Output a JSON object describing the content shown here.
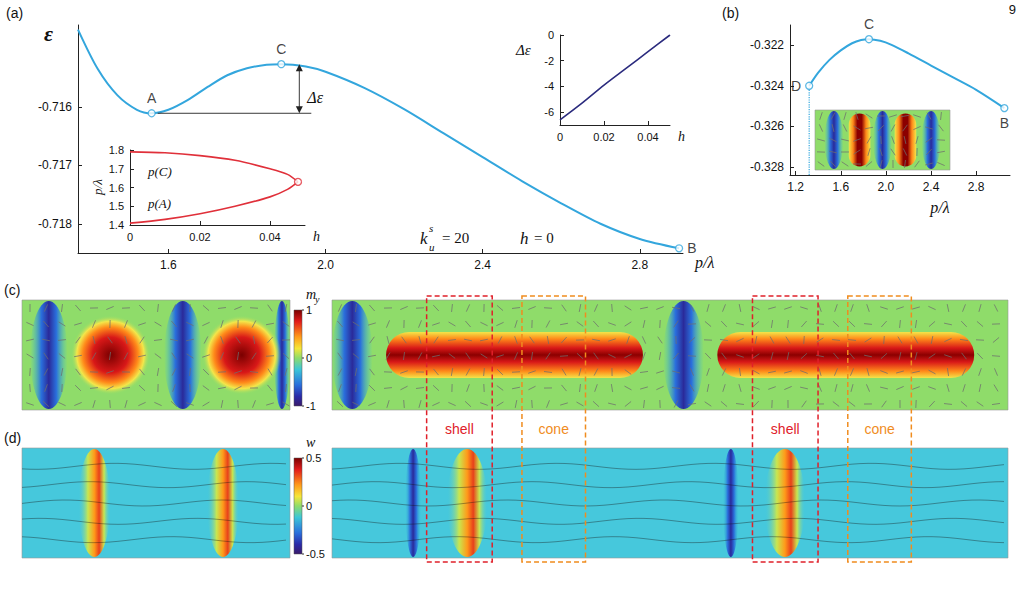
{
  "page_number": "9",
  "chart_data": [
    {
      "panel": "(a)",
      "type": "line",
      "x_label": "p/λ",
      "y_label": "ε",
      "color": "#33a6dd",
      "x": [
        1.37,
        1.42,
        1.47,
        1.52,
        1.5575,
        1.6,
        1.65,
        1.7,
        1.75,
        1.8,
        1.85,
        1.8875,
        1.95,
        2.0,
        2.1,
        2.2,
        2.3,
        2.4,
        2.5,
        2.6,
        2.7,
        2.8,
        2.9
      ],
      "values": [
        -0.71468,
        -0.71535,
        -0.7158,
        -0.71605,
        -0.71611,
        -0.71605,
        -0.71588,
        -0.71566,
        -0.71546,
        -0.71534,
        -0.71528,
        -0.71527,
        -0.71531,
        -0.7154,
        -0.71568,
        -0.71604,
        -0.71645,
        -0.71686,
        -0.71727,
        -0.71765,
        -0.718,
        -0.71826,
        -0.71842
      ],
      "xlim": [
        1.37,
        2.91
      ],
      "xticks": [
        1.6,
        {
          "value": 2,
          "label": "2.0"
        },
        2.4,
        2.8
      ],
      "ylim": [
        -0.7185,
        -0.7146
      ],
      "yticks": [
        -0.716,
        -0.717,
        -0.718
      ],
      "points": [
        {
          "label": "A",
          "x": 1.5575,
          "y": -0.71611
        },
        {
          "label": "C",
          "x": 1.8875,
          "y": -0.71527
        },
        {
          "label": "B",
          "x": 2.9,
          "y": -0.71842
        }
      ],
      "barrier_label": "Δε",
      "parameters": [
        {
          "symbol": "k",
          "subscript": "u",
          "superscript": "s",
          "text": "= 20"
        },
        {
          "symbol": "h",
          "text": "= 0"
        }
      ]
    },
    {
      "type": "line",
      "x_label": "h",
      "y_label": "p/λ",
      "x": [
        0,
        0.01,
        0.02,
        0.03,
        0.04,
        0.045,
        0.048
      ],
      "series": [
        {
          "name": "p(C)",
          "color": "#e0303a",
          "values": [
            1.79,
            1.785,
            1.77,
            1.745,
            1.7,
            1.67,
            1.63
          ]
        },
        {
          "name": "p(A)",
          "color": "#e0303a",
          "values": [
            1.41,
            1.43,
            1.46,
            1.5,
            1.55,
            1.59,
            1.63
          ]
        }
      ],
      "xlim": [
        0,
        0.05
      ],
      "xticks": [
        0,
        0.02,
        0.04
      ],
      "ylim": [
        1.4,
        1.8
      ],
      "yticks": [
        1.4,
        1.5,
        1.6,
        1.7,
        1.8
      ],
      "points": [
        {
          "x": 0.048,
          "y": 1.63
        }
      ]
    },
    {
      "type": "line",
      "x_label": "h",
      "y_label": "Δε",
      "color": "#2b2b7e",
      "x": [
        0,
        0.01,
        0.02,
        0.03,
        0.04,
        0.05
      ],
      "values": [
        -6.6,
        -5.3,
        -3.9,
        -2.6,
        -1.3,
        0
      ],
      "xlim": [
        0,
        0.05
      ],
      "xticks": [
        0,
        0.02,
        0.04
      ],
      "ylim": [
        -7,
        0
      ],
      "yticks": [
        0,
        -2,
        -4,
        -6
      ]
    },
    {
      "panel": "(b)",
      "type": "line",
      "x_label": "p/λ",
      "color": "#33a6dd",
      "x": [
        1.32,
        1.4,
        1.5,
        1.6,
        1.7,
        1.78,
        1.85,
        1.95,
        2.05,
        2.2,
        2.4,
        2.6,
        2.8,
        3.05
      ],
      "values": [
        -0.324,
        -0.32335,
        -0.32272,
        -0.32225,
        -0.3219,
        -0.32174,
        -0.3217,
        -0.32178,
        -0.32198,
        -0.3224,
        -0.323,
        -0.3236,
        -0.3242,
        -0.3251
      ],
      "xlim": [
        1.15,
        3.1
      ],
      "xticks": [
        1.2,
        1.6,
        {
          "value": 2,
          "label": "2.0"
        },
        2.4,
        2.8
      ],
      "ylim": [
        -0.3284,
        -0.321
      ],
      "yticks": [
        -0.322,
        -0.324,
        -0.326,
        -0.328
      ],
      "points": [
        {
          "label": "D",
          "x": 1.32,
          "y": -0.324
        },
        {
          "label": "C",
          "x": 1.85,
          "y": -0.3217
        },
        {
          "label": "B",
          "x": 3.05,
          "y": -0.3251
        }
      ]
    }
  ],
  "field_maps": [
    {
      "panel": "(c)",
      "colorbar": {
        "label": {
          "symbol": "m",
          "subscript": "y"
        },
        "range": [
          -1,
          1
        ],
        "ticks": [
          1,
          0,
          -1
        ]
      }
    },
    {
      "panel": "(d)",
      "colorbar": {
        "label": {
          "symbol": "w"
        },
        "range": [
          -0.5,
          0.5
        ],
        "ticks": [
          0.5,
          0,
          -0.5
        ]
      }
    }
  ],
  "regions": [
    {
      "label": "shell",
      "color": "#e0202a"
    },
    {
      "label": "cone",
      "color": "#f08c1e"
    }
  ]
}
